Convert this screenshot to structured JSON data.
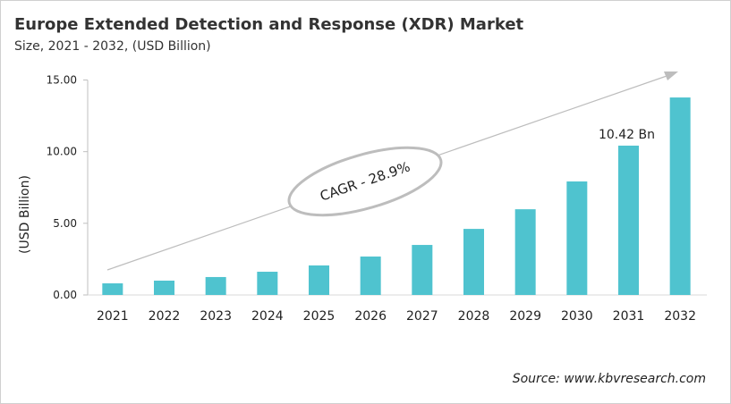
{
  "title": "Europe Extended Detection and Response (XDR) Market",
  "subtitle": "Size, 2021 - 2032, (USD Billion)",
  "source": "Source: www.kbvresearch.com",
  "chart_data": {
    "type": "bar",
    "title": "Europe Extended Detection and Response (XDR) Market",
    "subtitle": "Size, 2021 - 2032, (USD Billion)",
    "xlabel": "",
    "ylabel": "(USD Billion)",
    "ylim": [
      0,
      15
    ],
    "yticks": [
      "0.00",
      "5.00",
      "10.00",
      "15.00"
    ],
    "categories": [
      "2021",
      "2022",
      "2023",
      "2024",
      "2025",
      "2026",
      "2027",
      "2028",
      "2029",
      "2030",
      "2031",
      "2032"
    ],
    "values": [
      0.81,
      1.0,
      1.25,
      1.62,
      2.06,
      2.68,
      3.49,
      4.61,
      5.98,
      7.92,
      10.42,
      13.78
    ],
    "bar_color": "#4fc3cf",
    "grid": false,
    "annotations": [
      {
        "text": "10.42 Bn",
        "category": "2031"
      },
      {
        "text": "CAGR - 28.9%",
        "kind": "ellipse-on-trend-arrow"
      }
    ]
  }
}
